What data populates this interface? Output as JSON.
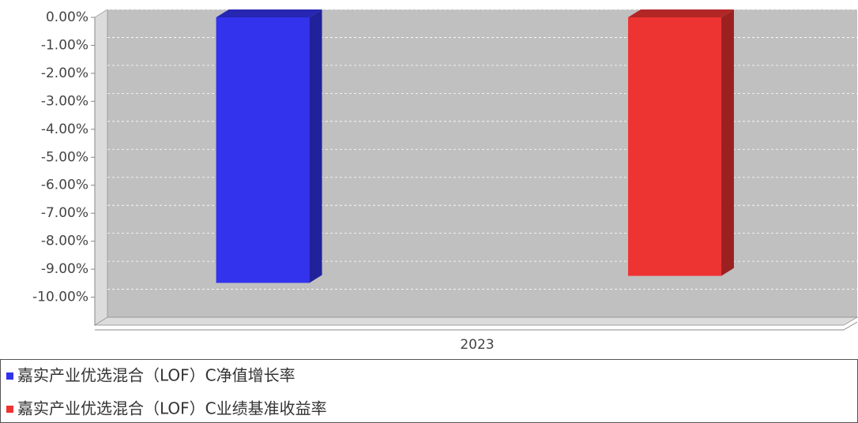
{
  "chart_data": {
    "type": "bar3d",
    "categories": [
      "2023"
    ],
    "series": [
      {
        "name": "嘉实产业优选混合（LOF）C净值增长率",
        "color": "#3333ee",
        "values": [
          -9.49
        ]
      },
      {
        "name": "嘉实产业优选混合（LOF）C业绩基准收益率",
        "color": "#ee3333",
        "values": [
          -9.24
        ]
      }
    ],
    "ylim": [
      -11,
      0
    ],
    "yticks": [
      {
        "value": 0,
        "label": "0.00%"
      },
      {
        "value": -1,
        "label": "-1.00%"
      },
      {
        "value": -2,
        "label": "-2.00%"
      },
      {
        "value": -3,
        "label": "-3.00%"
      },
      {
        "value": -4,
        "label": "-4.00%"
      },
      {
        "value": -5,
        "label": "-5.00%"
      },
      {
        "value": -6,
        "label": "-6.00%"
      },
      {
        "value": -7,
        "label": "-7.00%"
      },
      {
        "value": -8,
        "label": "-8.00%"
      },
      {
        "value": -9,
        "label": "-9.00%"
      },
      {
        "value": -10,
        "label": "-10.00%"
      }
    ],
    "grid": true
  }
}
